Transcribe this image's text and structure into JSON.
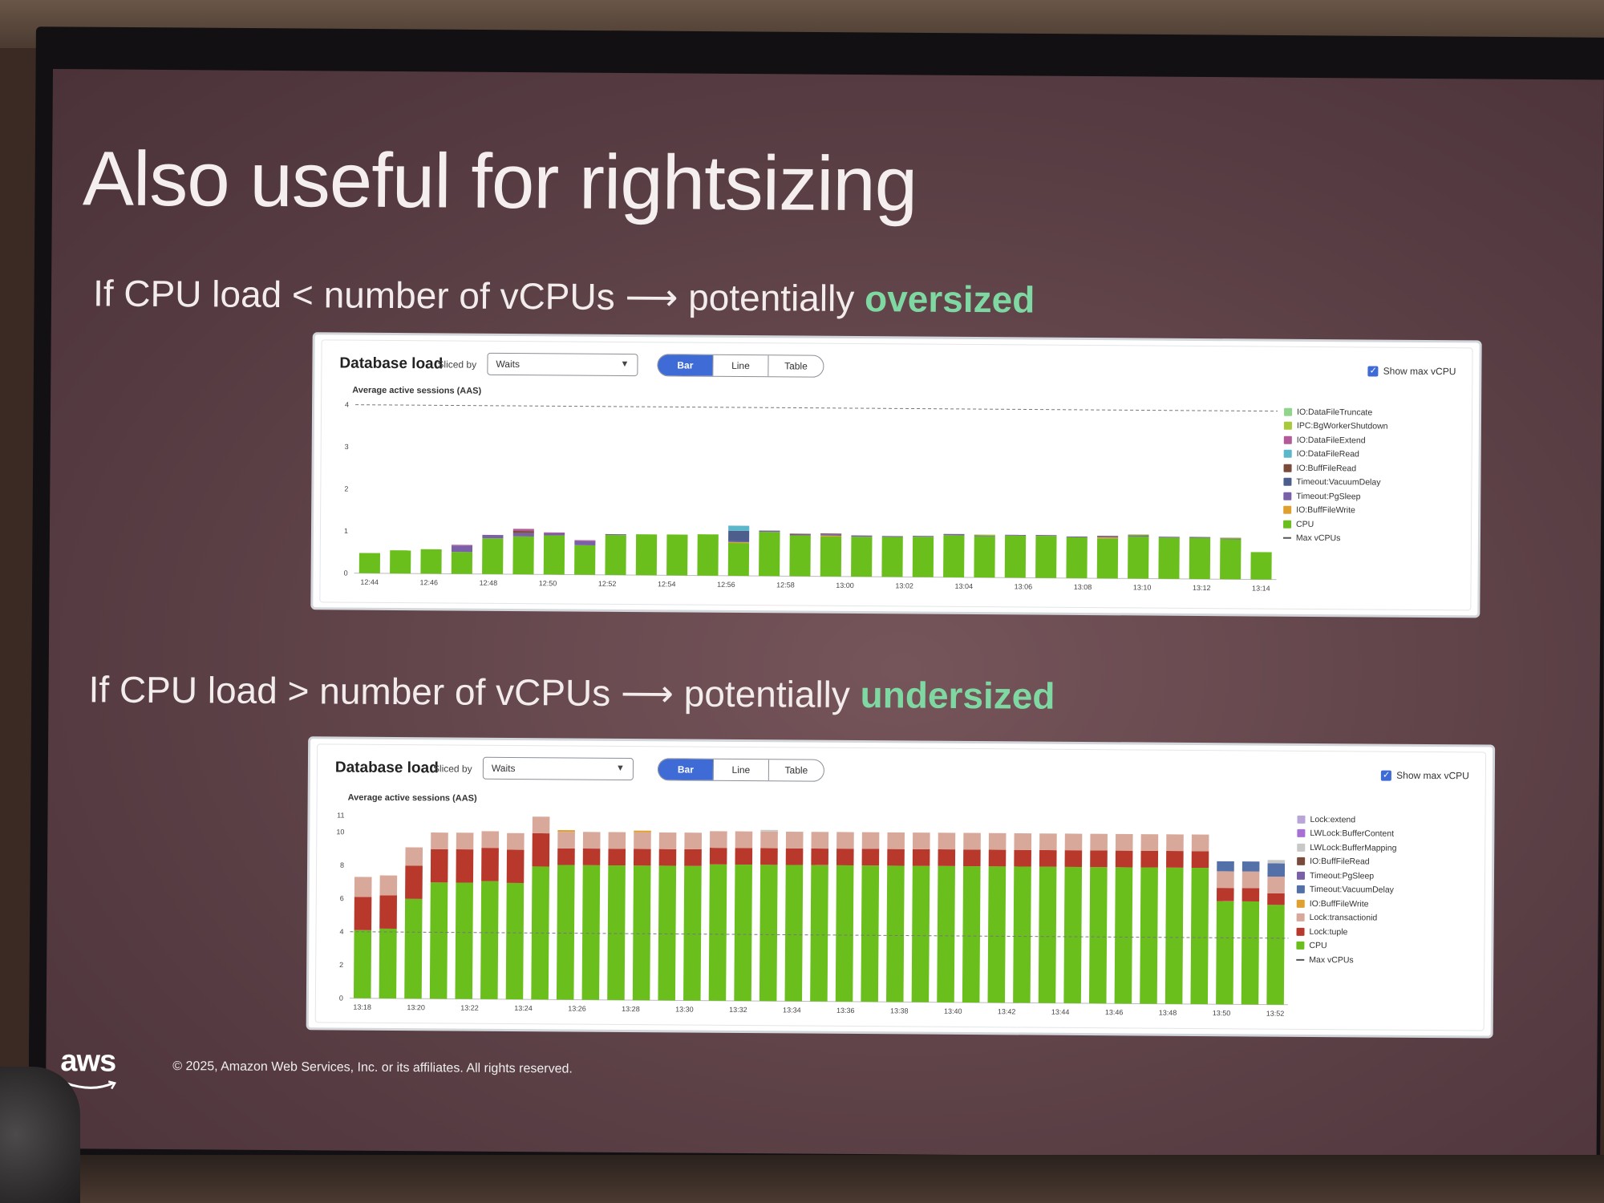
{
  "slide": {
    "title": "Also useful for rightsizing",
    "line1": {
      "text": "If CPU load < number of vCPUs ⟶ potentially ",
      "accent": "oversized"
    },
    "line2": {
      "text": "If CPU load > number of vCPUs ⟶ potentially ",
      "accent": "undersized"
    },
    "footer": "© 2025, Amazon Web Services, Inc. or its affiliates. All rights reserved.",
    "logo": "aws"
  },
  "panels": [
    {
      "title": "Database load",
      "sliced_by_label": "Sliced by",
      "sliced_by_value": "Waits",
      "view_options": [
        "Bar",
        "Line",
        "Table"
      ],
      "active_view": "Bar",
      "show_max_vcpu_label": "Show max vCPU",
      "y_axis_label": "Average active sessions (AAS)"
    },
    {
      "title": "Database load",
      "sliced_by_label": "Sliced by",
      "sliced_by_value": "Waits",
      "view_options": [
        "Bar",
        "Line",
        "Table"
      ],
      "active_view": "Bar",
      "show_max_vcpu_label": "Show max vCPU",
      "y_axis_label": "Average active sessions (AAS)"
    }
  ],
  "chart_data": [
    {
      "type": "bar",
      "stacked": true,
      "y_axis_label": "Average active sessions (AAS)",
      "ylim": [
        0,
        4
      ],
      "y_ticks": [
        0,
        1,
        2,
        3,
        4
      ],
      "y_tick_labels": [
        "0",
        "1",
        "2",
        "3",
        "4"
      ],
      "max_vcpus": 4,
      "x_tick_labels": [
        "12:44",
        "12:46",
        "12:48",
        "12:50",
        "12:52",
        "12:54",
        "12:56",
        "12:58",
        "13:00",
        "13:02",
        "13:04",
        "13:06",
        "13:08",
        "13:10",
        "13:12",
        "13:14"
      ],
      "legend": [
        "IO:DataFileTruncate",
        "IPC:BgWorkerShutdown",
        "IO:DataFileExtend",
        "IO:DataFileRead",
        "IO:BuffFileRead",
        "Timeout:VacuumDelay",
        "Timeout:PgSleep",
        "IO:BuffFileWrite",
        "CPU",
        "Max vCPUs"
      ],
      "colors": {
        "IO:DataFileTruncate": "#8fd68a",
        "IPC:BgWorkerShutdown": "#a8c93a",
        "IO:DataFileExtend": "#b25a9a",
        "IO:DataFileRead": "#5bb7c9",
        "IO:BuffFileRead": "#7a4b3a",
        "Timeout:VacuumDelay": "#4e5e8c",
        "Timeout:PgSleep": "#7a60a8",
        "IO:BuffFileWrite": "#e0a030",
        "CPU": "#6abf1d"
      },
      "series": [
        {
          "name": "CPU",
          "values": [
            0.48,
            0.55,
            0.58,
            0.52,
            0.85,
            0.9,
            0.93,
            0.7,
            0.95,
            0.97,
            0.97,
            0.98,
            0.78,
            1.05,
            0.97,
            0.95,
            0.95,
            0.95,
            0.96,
            1.0,
            0.98,
            1.0,
            1.0,
            0.97,
            0.95,
            1.0,
            0.98,
            0.98,
            0.95,
            0.65
          ]
        },
        {
          "name": "IO:BuffFileWrite",
          "values": [
            0,
            0,
            0,
            0,
            0,
            0,
            0,
            0,
            0,
            0,
            0,
            0,
            0.02,
            0,
            0,
            0.02,
            0,
            0,
            0,
            0,
            0,
            0,
            0,
            0,
            0.02,
            0,
            0,
            0,
            0,
            0
          ]
        },
        {
          "name": "Timeout:PgSleep",
          "values": [
            0,
            0,
            0,
            0.15,
            0.08,
            0.08,
            0.05,
            0.1,
            0.02,
            0,
            0,
            0,
            0.02,
            0.03,
            0.02,
            0.03,
            0.03,
            0.02,
            0.02,
            0.03,
            0.02,
            0.02,
            0.02,
            0.02,
            0.02,
            0.03,
            0.02,
            0.02,
            0.02,
            0
          ]
        },
        {
          "name": "Timeout:VacuumDelay",
          "values": [
            0,
            0,
            0,
            0,
            0,
            0,
            0,
            0,
            0,
            0,
            0,
            0,
            0.25,
            0,
            0,
            0,
            0,
            0,
            0,
            0,
            0,
            0,
            0,
            0,
            0,
            0,
            0,
            0,
            0,
            0
          ]
        },
        {
          "name": "IO:BuffFileRead",
          "values": [
            0,
            0,
            0,
            0,
            0,
            0.05,
            0,
            0,
            0,
            0,
            0,
            0,
            0,
            0,
            0.02,
            0.02,
            0,
            0,
            0,
            0,
            0,
            0,
            0,
            0,
            0.02,
            0,
            0,
            0,
            0,
            0
          ]
        },
        {
          "name": "IO:DataFileRead",
          "values": [
            0,
            0,
            0,
            0,
            0,
            0,
            0,
            0,
            0,
            0,
            0,
            0,
            0.12,
            0,
            0,
            0,
            0,
            0,
            0,
            0,
            0,
            0,
            0,
            0,
            0,
            0,
            0,
            0,
            0,
            0
          ]
        },
        {
          "name": "IO:DataFileExtend",
          "values": [
            0,
            0,
            0,
            0.02,
            0,
            0.05,
            0.02,
            0.02,
            0,
            0,
            0,
            0,
            0,
            0,
            0,
            0,
            0,
            0,
            0,
            0,
            0,
            0,
            0,
            0,
            0,
            0,
            0,
            0,
            0,
            0
          ]
        },
        {
          "name": "IPC:BgWorkerShutdown",
          "values": [
            0,
            0,
            0,
            0,
            0,
            0,
            0,
            0,
            0,
            0,
            0,
            0,
            0,
            0,
            0,
            0,
            0,
            0,
            0,
            0,
            0.02,
            0,
            0,
            0,
            0,
            0.02,
            0,
            0,
            0.02,
            0
          ]
        }
      ]
    },
    {
      "type": "bar",
      "stacked": true,
      "y_axis_label": "Average active sessions (AAS)",
      "ylim": [
        0,
        11
      ],
      "y_ticks": [
        0,
        2,
        4,
        6,
        8,
        10,
        11
      ],
      "y_tick_labels": [
        "0",
        "2",
        "4",
        "6",
        "8",
        "10",
        "11"
      ],
      "max_vcpus": 4,
      "x_tick_labels": [
        "13:18",
        "13:20",
        "13:22",
        "13:24",
        "13:26",
        "13:28",
        "13:30",
        "13:32",
        "13:34",
        "13:36",
        "13:38",
        "13:40",
        "13:42",
        "13:44",
        "13:46",
        "13:48",
        "13:50",
        "13:52"
      ],
      "legend": [
        "Lock:extend",
        "LWLock:BufferContent",
        "LWLock:BufferMapping",
        "IO:BuffFileRead",
        "Timeout:PgSleep",
        "Timeout:VacuumDelay",
        "IO:BuffFileWrite",
        "Lock:transactionid",
        "Lock:tuple",
        "CPU",
        "Max vCPUs"
      ],
      "colors": {
        "Lock:extend": "#b9a6d6",
        "LWLock:BufferContent": "#a86fd4",
        "LWLock:BufferMapping": "#c8c8c8",
        "IO:BuffFileRead": "#7a4b3a",
        "Timeout:PgSleep": "#7a60a8",
        "Timeout:VacuumDelay": "#5470a8",
        "IO:BuffFileWrite": "#e0a030",
        "Lock:transactionid": "#d8a89a",
        "Lock:tuple": "#b8382c",
        "CPU": "#6abf1d"
      },
      "series": [
        {
          "name": "CPU",
          "values": [
            4.1,
            4.2,
            6.0,
            7.0,
            7.0,
            7.1,
            7.0,
            8.0,
            8.1,
            8.1,
            8.1,
            8.1,
            8.1,
            8.1,
            8.2,
            8.2,
            8.2,
            8.2,
            8.2,
            8.2,
            8.2,
            8.2,
            8.2,
            8.2,
            8.2,
            8.2,
            8.2,
            8.2,
            8.2,
            8.2,
            8.2,
            8.2,
            8.2,
            8.2,
            6.2,
            6.2,
            6.0
          ]
        },
        {
          "name": "Lock:tuple",
          "values": [
            2.0,
            2.0,
            2.0,
            2.0,
            2.0,
            2.0,
            2.0,
            2.0,
            1.0,
            1.0,
            1.0,
            1.0,
            1.0,
            1.0,
            1.0,
            1.0,
            1.0,
            1.0,
            1.0,
            1.0,
            1.0,
            1.0,
            1.0,
            1.0,
            1.0,
            1.0,
            1.0,
            1.0,
            1.0,
            1.0,
            1.0,
            1.0,
            1.0,
            1.0,
            0.8,
            0.8,
            0.7
          ]
        },
        {
          "name": "Lock:transactionid",
          "values": [
            1.2,
            1.2,
            1.1,
            1.0,
            1.0,
            1.0,
            1.0,
            1.0,
            1.0,
            1.0,
            1.0,
            1.0,
            1.0,
            1.0,
            1.0,
            1.0,
            1.0,
            1.0,
            1.0,
            1.0,
            1.0,
            1.0,
            1.0,
            1.0,
            1.0,
            1.0,
            1.0,
            1.0,
            1.0,
            1.0,
            1.0,
            1.0,
            1.0,
            1.0,
            1.0,
            1.0,
            1.0
          ]
        },
        {
          "name": "IO:BuffFileWrite",
          "values": [
            0,
            0,
            0,
            0,
            0,
            0,
            0,
            0,
            0.1,
            0,
            0,
            0.1,
            0,
            0,
            0,
            0,
            0,
            0,
            0,
            0,
            0,
            0,
            0,
            0,
            0,
            0,
            0,
            0,
            0,
            0,
            0,
            0,
            0,
            0,
            0,
            0,
            0
          ]
        },
        {
          "name": "Timeout:VacuumDelay",
          "values": [
            0,
            0,
            0,
            0,
            0,
            0,
            0,
            0,
            0,
            0,
            0,
            0,
            0,
            0,
            0,
            0,
            0,
            0,
            0,
            0,
            0,
            0,
            0,
            0,
            0,
            0,
            0,
            0,
            0,
            0,
            0,
            0,
            0,
            0,
            0.6,
            0.6,
            0.8
          ]
        },
        {
          "name": "LWLock:BufferMapping",
          "values": [
            0,
            0,
            0,
            0,
            0,
            0,
            0,
            0,
            0,
            0,
            0,
            0,
            0,
            0,
            0,
            0,
            0.1,
            0,
            0,
            0,
            0,
            0,
            0,
            0,
            0,
            0,
            0,
            0,
            0,
            0,
            0,
            0,
            0,
            0,
            0,
            0,
            0.2
          ]
        }
      ]
    }
  ]
}
